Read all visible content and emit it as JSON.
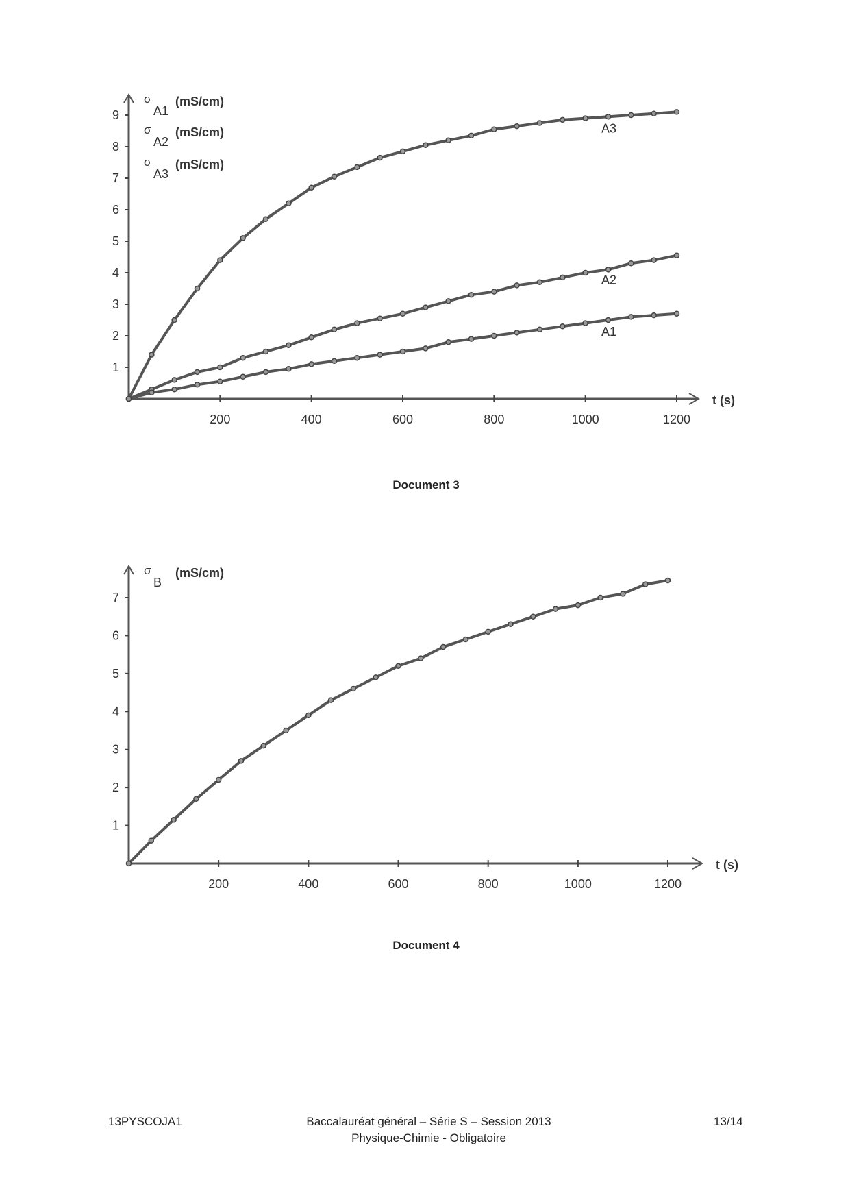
{
  "chart_data": [
    {
      "type": "line",
      "title": "Document 3",
      "xlabel": "t (s)",
      "ylabel_lines": [
        {
          "symbol": "σ",
          "sub": "A1",
          "unit": "(mS/cm)"
        },
        {
          "symbol": "σ",
          "sub": "A2",
          "unit": "(mS/cm)"
        },
        {
          "symbol": "σ",
          "sub": "A3",
          "unit": "(mS/cm)"
        }
      ],
      "xlim": [
        0,
        1200
      ],
      "ylim": [
        0,
        9
      ],
      "xticks": [
        200,
        400,
        600,
        800,
        1000,
        1200
      ],
      "yticks": [
        1,
        2,
        3,
        4,
        5,
        6,
        7,
        8,
        9
      ],
      "grid": false,
      "x": [
        0,
        50,
        100,
        150,
        200,
        250,
        300,
        350,
        400,
        450,
        500,
        550,
        600,
        650,
        700,
        750,
        800,
        850,
        900,
        950,
        1000,
        1050,
        1100,
        1150,
        1200
      ],
      "series": [
        {
          "name": "A3",
          "values": [
            0,
            1.4,
            2.5,
            3.5,
            4.4,
            5.1,
            5.7,
            6.2,
            6.7,
            7.05,
            7.35,
            7.65,
            7.85,
            8.05,
            8.2,
            8.35,
            8.55,
            8.65,
            8.75,
            8.85,
            8.9,
            8.95,
            9.0,
            9.05,
            9.1
          ]
        },
        {
          "name": "A2",
          "values": [
            0,
            0.3,
            0.6,
            0.85,
            1.0,
            1.3,
            1.5,
            1.7,
            1.95,
            2.2,
            2.4,
            2.55,
            2.7,
            2.9,
            3.1,
            3.3,
            3.4,
            3.6,
            3.7,
            3.85,
            4.0,
            4.1,
            4.3,
            4.4,
            4.55
          ]
        },
        {
          "name": "A1",
          "values": [
            0,
            0.2,
            0.3,
            0.45,
            0.55,
            0.7,
            0.85,
            0.95,
            1.1,
            1.2,
            1.3,
            1.4,
            1.5,
            1.6,
            1.8,
            1.9,
            2.0,
            2.1,
            2.2,
            2.3,
            2.4,
            2.5,
            2.6,
            2.65,
            2.7
          ]
        }
      ]
    },
    {
      "type": "line",
      "title": "Document 4",
      "xlabel": "t (s)",
      "ylabel_lines": [
        {
          "symbol": "σ",
          "sub": "B",
          "unit": "(mS/cm)"
        }
      ],
      "xlim": [
        0,
        1200
      ],
      "ylim": [
        0,
        7
      ],
      "xticks": [
        200,
        400,
        600,
        800,
        1000,
        1200
      ],
      "yticks": [
        1,
        2,
        3,
        4,
        5,
        6,
        7
      ],
      "grid": false,
      "x": [
        0,
        50,
        100,
        150,
        200,
        250,
        300,
        350,
        400,
        450,
        500,
        550,
        600,
        650,
        700,
        750,
        800,
        850,
        900,
        950,
        1000,
        1050,
        1100,
        1150,
        1200
      ],
      "series": [
        {
          "name": "B",
          "values": [
            0,
            0.6,
            1.15,
            1.7,
            2.2,
            2.7,
            3.1,
            3.5,
            3.9,
            4.3,
            4.6,
            4.9,
            5.2,
            5.4,
            5.7,
            5.9,
            6.1,
            6.3,
            6.5,
            6.7,
            6.8,
            7.0,
            7.1,
            7.35,
            7.45
          ]
        }
      ]
    }
  ],
  "footer": {
    "code": "13PYSCOJA1",
    "line1": "Baccalauréat général – Série S – Session 2013",
    "line2": "Physique-Chimie - Obligatoire",
    "page": "13/14"
  }
}
